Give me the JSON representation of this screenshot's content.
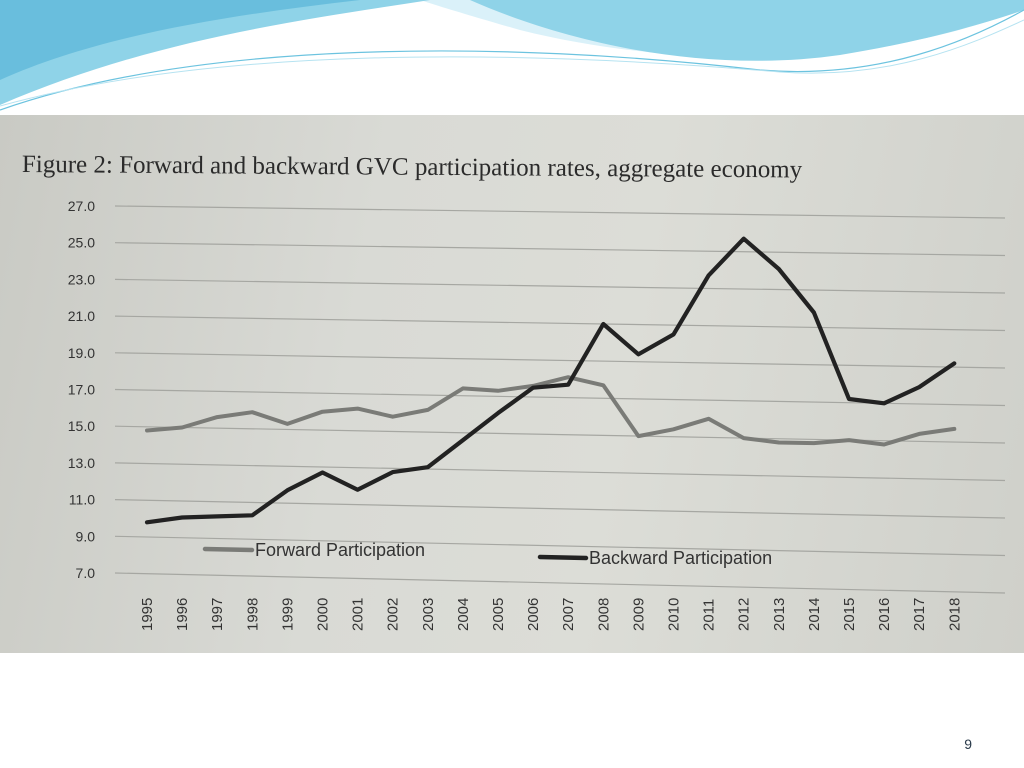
{
  "slide": {
    "number": "9"
  },
  "colors": {
    "header_blue": "#8fd3e8",
    "header_light": "#d6f0f8",
    "forward_line": "#7a7b77",
    "backward_line": "#222222",
    "grid": "#a6a7a2"
  },
  "chart_data": {
    "type": "line",
    "title": "Figure 2: Forward and backward GVC participation rates, aggregate economy",
    "xlabel": "",
    "ylabel": "",
    "x": [
      "1995",
      "1996",
      "1997",
      "1998",
      "1999",
      "2000",
      "2001",
      "2002",
      "2003",
      "2004",
      "2005",
      "2006",
      "2007",
      "2008",
      "2009",
      "2010",
      "2011",
      "2012",
      "2013",
      "2014",
      "2015",
      "2016",
      "2017",
      "2018"
    ],
    "y_ticks": [
      "27.0",
      "25.0",
      "23.0",
      "21.0",
      "19.0",
      "17.0",
      "15.0",
      "13.0",
      "11.0",
      "9.0",
      "7.0"
    ],
    "ylim": [
      7,
      27
    ],
    "grid": true,
    "legend_position": "bottom",
    "series": [
      {
        "name": "Forward Participation",
        "values": [
          14.8,
          15.0,
          15.6,
          15.9,
          15.3,
          16.0,
          16.2,
          15.8,
          16.2,
          17.4,
          17.3,
          17.6,
          18.1,
          17.7,
          15.0,
          15.4,
          16.0,
          15.0,
          14.8,
          14.8,
          15.0,
          14.8,
          15.4,
          15.7
        ]
      },
      {
        "name": "Backward Participation",
        "values": [
          9.8,
          10.1,
          10.2,
          10.3,
          11.7,
          12.7,
          11.8,
          12.8,
          13.1,
          14.6,
          16.1,
          17.5,
          17.7,
          21.0,
          19.4,
          20.5,
          23.7,
          25.7,
          24.1,
          21.8,
          17.2,
          17.0,
          17.9,
          19.2
        ]
      }
    ]
  }
}
